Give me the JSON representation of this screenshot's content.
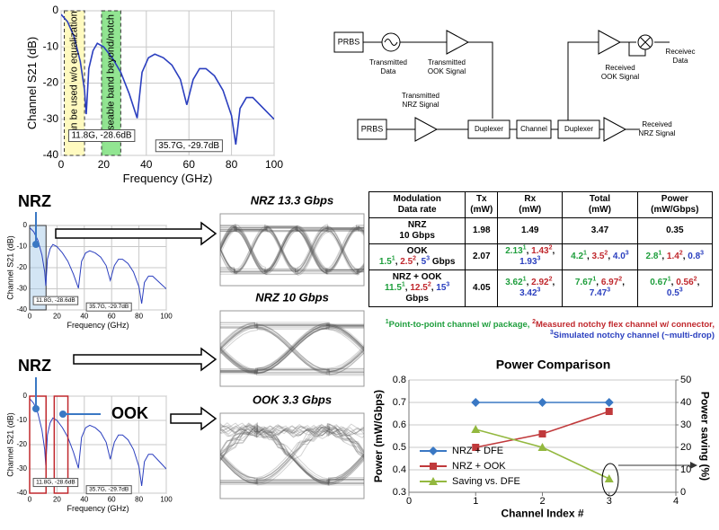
{
  "chart_data": [
    {
      "type": "line",
      "x_label": "Frequency (GHz)",
      "y_label": "Channel S21 (dB)",
      "x": [
        0,
        3,
        6,
        9,
        11,
        11.8,
        13,
        15,
        17,
        20,
        24,
        28,
        32,
        35.7,
        38,
        41,
        44,
        48,
        52,
        56,
        59,
        62,
        65,
        68,
        72,
        76,
        80,
        82,
        84,
        87,
        90,
        95,
        100
      ],
      "series": [
        {
          "color": "#2b3fbf",
          "values": [
            -1,
            -3,
            -7,
            -14,
            -22,
            -28.6,
            -16,
            -11,
            -9,
            -10,
            -13,
            -17,
            -23,
            -29.7,
            -17,
            -13,
            -12,
            -13,
            -15,
            -19,
            -26,
            -19,
            -16,
            -16,
            -18,
            -22,
            -29,
            -37,
            -27,
            -24,
            -24,
            -27,
            -30
          ]
        }
      ],
      "xlim": [
        0,
        100
      ],
      "ylim": [
        -40,
        0
      ],
      "xticks": [
        0,
        20,
        40,
        60,
        80,
        100
      ],
      "yticks": [
        -40,
        -30,
        -20,
        -10,
        0
      ],
      "grid": "both",
      "annotations": [
        "11.8G, -28.6dB",
        "35.7G, -29.7dB",
        "Can be used w/o equalization",
        "Useable band beyond/notch"
      ]
    },
    {
      "type": "line",
      "title": "Power Comparison",
      "x_label": "Channel Index #",
      "y_label": "Power (mW/Gbps)",
      "y2_label": "Power saving (%)",
      "x": [
        1,
        2,
        3
      ],
      "series": [
        {
          "name": "NRZ + DFE",
          "color": "#3a78c4",
          "marker": "diamond",
          "values": [
            0.7,
            0.7,
            0.7
          ]
        },
        {
          "name": "NRZ + OOK",
          "color": "#c0393b",
          "marker": "square",
          "values": [
            0.5,
            0.56,
            0.66
          ]
        },
        {
          "name": "Saving vs. DFE",
          "color": "#93b83f",
          "marker": "triangle",
          "axis": "y2",
          "values": [
            28,
            20,
            6
          ]
        }
      ],
      "xlim": [
        0,
        4
      ],
      "ylim": [
        0.3,
        0.8
      ],
      "y2lim": [
        0,
        50
      ],
      "xticks": [
        0,
        1,
        2,
        3,
        4
      ],
      "yticks": [
        0.3,
        0.4,
        0.5,
        0.6,
        0.7,
        0.8
      ],
      "y2ticks": [
        0,
        10,
        20,
        30,
        40,
        50
      ],
      "grid": "y",
      "legend": "lower left"
    }
  ],
  "callouts": [
    "NRZ",
    "NRZ",
    "OOK"
  ],
  "eye_diagrams": [
    "NRZ 13.3 Gbps",
    "NRZ 10 Gbps",
    "OOK 3.3 Gbps"
  ],
  "diagram": {
    "nodes": [
      [
        "PRBS"
      ],
      [
        "Transmitted",
        "Data"
      ],
      [
        "Transmitted",
        "OOK Signal"
      ],
      [
        "Received",
        "OOK Signal"
      ],
      [
        "Receivec",
        "Data"
      ],
      [
        "PRBS"
      ],
      [
        "Transmitted",
        "NRZ Signal"
      ],
      [
        "Duplexer"
      ],
      [
        "Channel"
      ],
      [
        "Duplexer"
      ],
      [
        "Received",
        "NRZ Signal"
      ]
    ]
  },
  "table": {
    "header": [
      [
        [
          {
            "text": "Modulation"
          }
        ],
        [
          {
            "text": "Data rate"
          }
        ]
      ],
      [
        [
          {
            "text": "Tx"
          }
        ],
        [
          {
            "text": "(mW)"
          }
        ]
      ],
      [
        [
          {
            "text": "Rx"
          }
        ],
        [
          {
            "text": "(mW)"
          }
        ]
      ],
      [
        [
          {
            "text": "Total"
          }
        ],
        [
          {
            "text": "(mW)"
          }
        ]
      ],
      [
        [
          {
            "text": "Power"
          }
        ],
        [
          {
            "text": "(mW/Gbps)"
          }
        ]
      ]
    ],
    "rows": [
      [
        [
          [
            {
              "text": "NRZ"
            }
          ],
          [
            {
              "text": "10 Gbps"
            }
          ]
        ],
        [
          [
            {
              "text": "1.98"
            }
          ]
        ],
        [
          [
            {
              "text": "1.49"
            }
          ]
        ],
        [
          [
            {
              "text": "3.47"
            }
          ]
        ],
        [
          [
            {
              "text": "0.35"
            }
          ]
        ]
      ],
      [
        [
          [
            {
              "text": "OOK"
            }
          ],
          [
            {
              "text": "1.5",
              "sup": "1",
              "color": "#1e9e3c"
            },
            {
              "text": ", "
            },
            {
              "text": "2.5",
              "sup": "2",
              "color": "#c0282d"
            },
            {
              "text": ", "
            },
            {
              "text": "5",
              "sup": "3",
              "color": "#2a3fbf"
            },
            {
              "text": " Gbps"
            }
          ]
        ],
        [
          [
            {
              "text": "2.07"
            }
          ]
        ],
        [
          [
            {
              "text": "2.13",
              "sup": "1",
              "color": "#1e9e3c"
            },
            {
              "text": ", "
            },
            {
              "text": "1.43",
              "sup": "2",
              "color": "#c0282d"
            },
            {
              "text": ","
            }
          ],
          [
            {
              "text": "1.93",
              "sup": "3",
              "color": "#2a3fbf"
            }
          ]
        ],
        [
          [
            {
              "text": "4.2",
              "sup": "1",
              "color": "#1e9e3c"
            },
            {
              "text": ", "
            },
            {
              "text": "3.5",
              "sup": "2",
              "color": "#c0282d"
            },
            {
              "text": ", "
            },
            {
              "text": "4.0",
              "sup": "3",
              "color": "#2a3fbf"
            }
          ]
        ],
        [
          [
            {
              "text": "2.8",
              "sup": "1",
              "color": "#1e9e3c"
            },
            {
              "text": ", "
            },
            {
              "text": "1.4",
              "sup": "2",
              "color": "#c0282d"
            },
            {
              "text": ", "
            },
            {
              "text": "0.8",
              "sup": "3",
              "color": "#2a3fbf"
            }
          ]
        ]
      ],
      [
        [
          [
            {
              "text": "NRZ + OOK"
            }
          ],
          [
            {
              "text": "11.5",
              "sup": "1",
              "color": "#1e9e3c"
            },
            {
              "text": ", "
            },
            {
              "text": "12.5",
              "sup": "2",
              "color": "#c0282d"
            },
            {
              "text": ", "
            },
            {
              "text": "15",
              "sup": "3",
              "color": "#2a3fbf"
            }
          ],
          [
            {
              "text": "Gbps"
            }
          ]
        ],
        [
          [
            {
              "text": "4.05"
            }
          ]
        ],
        [
          [
            {
              "text": "3.62",
              "sup": "1",
              "color": "#1e9e3c"
            },
            {
              "text": ", "
            },
            {
              "text": "2.92",
              "sup": "2",
              "color": "#c0282d"
            },
            {
              "text": ","
            }
          ],
          [
            {
              "text": "3.42",
              "sup": "3",
              "color": "#2a3fbf"
            }
          ]
        ],
        [
          [
            {
              "text": "7.67",
              "sup": "1",
              "color": "#1e9e3c"
            },
            {
              "text": ", "
            },
            {
              "text": "6.97",
              "sup": "2",
              "color": "#c0282d"
            },
            {
              "text": ","
            }
          ],
          [
            {
              "text": "7.47",
              "sup": "3",
              "color": "#2a3fbf"
            }
          ]
        ],
        [
          [
            {
              "text": "0.67",
              "sup": "1",
              "color": "#1e9e3c"
            },
            {
              "text": ", "
            },
            {
              "text": "0.56",
              "sup": "2",
              "color": "#c0282d"
            },
            {
              "text": ","
            }
          ],
          [
            {
              "text": "0.5",
              "sup": "3",
              "color": "#2a3fbf"
            }
          ]
        ]
      ]
    ],
    "footnote": [
      {
        "sup": "1",
        "text": "Point-to-point channel w/ package, ",
        "color": "#1e9e3c"
      },
      {
        "sup": "2",
        "text": "Measured notchy flex channel w/ connector, ",
        "color": "#c0282d"
      },
      {
        "sup": "3",
        "text": "Simulated notchy channel (~multi-drop)",
        "color": "#2a3fbf"
      }
    ]
  }
}
